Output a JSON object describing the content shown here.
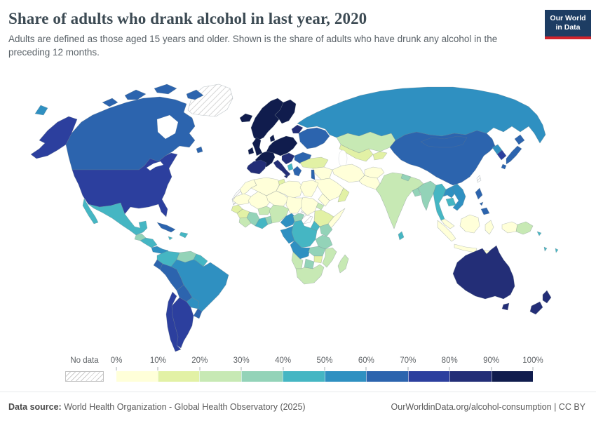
{
  "header": {
    "title": "Share of adults who drank alcohol in last year, 2020",
    "subtitle": "Adults are defined as those aged 15 years and older. Shown is the share of adults who have drunk any alcohol in the preceding 12 months.",
    "logo": {
      "line1": "Our World",
      "line2": "in Data",
      "bg_color": "#1d3d63",
      "accent_color": "#d0242c"
    }
  },
  "legend": {
    "no_data_label": "No data",
    "ticks": [
      "0%",
      "10%",
      "20%",
      "30%",
      "40%",
      "50%",
      "60%",
      "70%",
      "80%",
      "90%",
      "100%"
    ],
    "palette": [
      {
        "range": "0-10%",
        "color": "#ffffd9"
      },
      {
        "range": "10-20%",
        "color": "#e2f1a5"
      },
      {
        "range": "20-30%",
        "color": "#c7e9b4"
      },
      {
        "range": "30-40%",
        "color": "#93d3b8"
      },
      {
        "range": "40-50%",
        "color": "#45b6c3"
      },
      {
        "range": "50-60%",
        "color": "#2f90c1"
      },
      {
        "range": "60-70%",
        "color": "#2c64ae"
      },
      {
        "range": "70-80%",
        "color": "#2c3f9e"
      },
      {
        "range": "80-90%",
        "color": "#232e77"
      },
      {
        "range": "90-100%",
        "color": "#101c4d"
      }
    ]
  },
  "chart_data": {
    "type": "choropleth_map",
    "title": "Share of adults who drank alcohol in last year, 2020",
    "unit": "% of adults aged 15+",
    "year": "2020",
    "bins": [
      "0-10%",
      "10-20%",
      "20-30%",
      "30-40%",
      "40-50%",
      "50-60%",
      "60-70%",
      "70-80%",
      "80-90%",
      "90-100%"
    ],
    "no_data": "No data",
    "regions": {
      "greenland": "No data",
      "iceland": "90-100%",
      "canada": "60-70%",
      "united-states": "70-80%",
      "mexico": "40-50%",
      "guatemala": "30-40%",
      "honduras-nicaragua": "40-50%",
      "costa-rica-panama": "50-60%",
      "cuba": "60-70%",
      "hispaniola": "40-50%",
      "jamaica": "40-50%",
      "colombia": "40-50%",
      "venezuela": "30-40%",
      "guyanas": "40-50%",
      "ecuador": "60-70%",
      "peru": "60-70%",
      "brazil": "50-60%",
      "bolivia": "60-70%",
      "paraguay": "50-60%",
      "uruguay": "60-70%",
      "argentina": "70-80%",
      "chile": "70-80%",
      "norway-sweden": "90-100%",
      "finland": "90-100%",
      "denmark": "90-100%",
      "united-kingdom": "90-100%",
      "ireland": "90-100%",
      "france": "90-100%",
      "iberia": "80-90%",
      "germany-central-europe": "90-100%",
      "italy": "80-90%",
      "balkans": "80-90%",
      "albania": "40-50%",
      "greece": "60-70%",
      "romania-bulgaria": "60-70%",
      "baltics": "80-90%",
      "ukraine-belarus": "60-70%",
      "russia": "50-60%",
      "kazakhstan": "20-30%",
      "uzbekistan-turkmenistan": "10-20%",
      "kyrgyzstan-tajikistan": "10-20%",
      "turkey": "10-20%",
      "syria-iraq": "0-10%",
      "israel-lebanon": "60-70%",
      "saudi-arabia": "0-10%",
      "yemen": "0-10%",
      "oman": "10-20%",
      "iran": "0-10%",
      "afghanistan": "0-10%",
      "pakistan": "0-10%",
      "india": "20-30%",
      "nepal": "30-40%",
      "bangladesh": "30-40%",
      "sri-lanka": "40-50%",
      "china": "60-70%",
      "mongolia": "60-70%",
      "north-korea": "50-60%",
      "south-korea": "70-80%",
      "japan": "60-70%",
      "taiwan": "No data",
      "myanmar": "30-40%",
      "thailand": "40-50%",
      "laos": "50-60%",
      "vietnam": "50-60%",
      "cambodia": "40-50%",
      "malaysia": "0-10%",
      "indonesia": "0-10%",
      "papua-new-guinea": "20-30%",
      "philippines": "60-70%",
      "solomon-islands": "40-50%",
      "vanuatu": "40-50%",
      "fiji": "40-50%",
      "australia": "80-90%",
      "new-zealand": "80-90%",
      "morocco": "0-10%",
      "western-sahara": "No data",
      "algeria": "0-10%",
      "tunisia": "10-20%",
      "libya": "0-10%",
      "egypt": "0-10%",
      "mauritania": "0-10%",
      "mali": "0-10%",
      "niger": "0-10%",
      "chad": "0-10%",
      "sudan": "0-10%",
      "south-sudan": "No data",
      "eritrea-djibouti": "20-30%",
      "ethiopia": "10-20%",
      "somalia": "0-10%",
      "kenya": "30-40%",
      "uganda": "40-50%",
      "senegal-gambia": "10-20%",
      "guinea-group": "10-20%",
      "sierra-leone-liberia": "20-30%",
      "cote-divoire": "30-40%",
      "ghana": "40-50%",
      "togo-benin": "30-40%",
      "burkina-faso": "20-30%",
      "nigeria": "20-30%",
      "cameroon": "50-60%",
      "central-african-republic": "30-40%",
      "gabon-congo": "50-60%",
      "drc": "40-50%",
      "tanzania": "30-40%",
      "angola": "50-60%",
      "zambia": "30-40%",
      "malawi-mozambique": "20-30%",
      "zimbabwe": "10-20%",
      "botswana": "30-40%",
      "namibia": "20-30%",
      "south-africa": "20-30%",
      "madagascar": "20-30%"
    }
  },
  "footer": {
    "source_label": "Data source:",
    "source_text": " World Health Organization - Global Health Observatory (2025)",
    "link_text": "OurWorldinData.org/alcohol-consumption | CC BY"
  }
}
